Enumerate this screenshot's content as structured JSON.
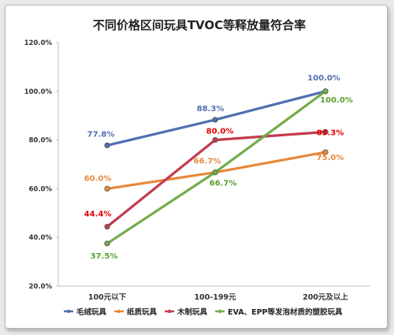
{
  "chart_data": {
    "type": "line",
    "title": "不同价格区间玩具TVOC等释放量符合率",
    "categories": [
      "100元以下",
      "100-199元",
      "200元及以上"
    ],
    "yticks": [
      "20.0%",
      "40.0%",
      "60.0%",
      "80.0%",
      "100.0%",
      "120.0%"
    ],
    "ylim": [
      20,
      120
    ],
    "grid": false,
    "legend_position": "bottom",
    "series": [
      {
        "name": "毛绒玩具",
        "color": "#4f6fb0",
        "values": [
          77.8,
          88.3,
          100.0
        ],
        "labels": [
          "77.8%",
          "88.3%",
          "100.0%"
        ]
      },
      {
        "name": "纸质玩具",
        "color": "#e8883a",
        "values": [
          60.0,
          66.7,
          75.0
        ],
        "labels": [
          "60.0%",
          "66.7%",
          "75.0%"
        ]
      },
      {
        "name": "木制玩具",
        "color": "#c23b4e",
        "label_color": "#e00000",
        "values": [
          44.4,
          80.0,
          83.3
        ],
        "labels": [
          "44.4%",
          "80.0%",
          "83.3%"
        ]
      },
      {
        "name": "EVA、EPP等发泡材质的塑胶玩具",
        "color": "#72ad4a",
        "label_color": "#5a9e2e",
        "values": [
          37.5,
          66.7,
          100.0
        ],
        "labels": [
          "37.5%",
          "66.7%",
          "100.0%"
        ]
      }
    ]
  }
}
